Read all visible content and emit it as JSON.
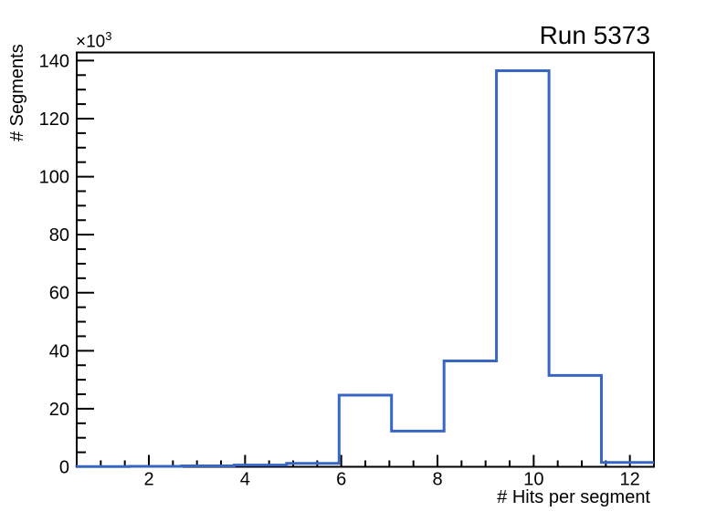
{
  "window": {
    "background": "#ffffff"
  },
  "chart_data": {
    "type": "bar",
    "style": "step-histogram",
    "title": "Run 5373",
    "xlabel": "# Hits per segment",
    "ylabel": "# Segments",
    "y_multiplier": {
      "base": "×10",
      "exponent": "3"
    },
    "y_units": "thousands of segments",
    "x_range": [
      0.5,
      12.5
    ],
    "y_range": [
      0,
      142.8
    ],
    "bin_edges": [
      0.5,
      1.591,
      2.682,
      3.773,
      4.864,
      5.955,
      7.045,
      8.136,
      9.227,
      10.318,
      11.409,
      12.5
    ],
    "values": [
      0.1,
      0.15,
      0.3,
      0.6,
      1.2,
      24.7,
      12.3,
      36.5,
      136.5,
      31.5,
      1.5
    ],
    "x_major_ticks": [
      2,
      4,
      6,
      8,
      10,
      12
    ],
    "x_minor_step": 0.5,
    "y_major_ticks": [
      0,
      20,
      40,
      60,
      80,
      100,
      120,
      140
    ],
    "y_minor_step": 5,
    "grid": false,
    "legend": null,
    "line_color": "#3766c4",
    "frame_color": "#000000",
    "text_color": "#000000"
  }
}
